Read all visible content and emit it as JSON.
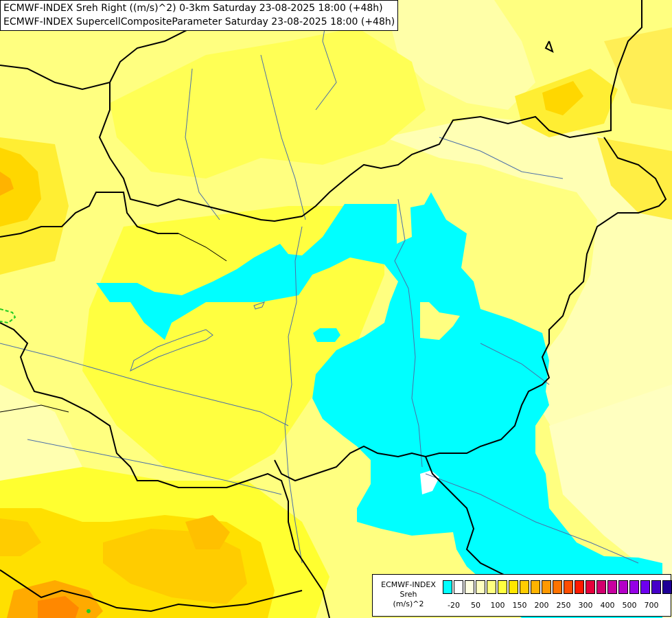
{
  "title_lines": [
    "ECMWF-INDEX Sreh Right ((m/s)^2) 0-3km Saturday 23-08-2025 18:00 (+48h)",
    "ECMWF-INDEX SupercellCompositeParameter Saturday 23-08-2025 18:00 (+48h)"
  ],
  "legend": {
    "line1": "ECMWF-INDEX",
    "line2": "Sreh",
    "line3": "(m/s)^2",
    "colors": [
      "#00ffff",
      "#ffffff",
      "#ffffe0",
      "#ffffc0",
      "#ffff80",
      "#ffff40",
      "#ffe600",
      "#ffcc00",
      "#ffb300",
      "#ff9900",
      "#ff7300",
      "#ff4d00",
      "#ff1a00",
      "#e6003c",
      "#d2006e",
      "#c800a0",
      "#b400c8",
      "#9600e6",
      "#6e00f0",
      "#4600c8",
      "#1e0096",
      "#00006e"
    ],
    "ticks": [
      "-20",
      "50",
      "100",
      "150",
      "200",
      "250",
      "300",
      "400",
      "500",
      "700"
    ]
  },
  "map": {
    "background_color": "#ffff80",
    "low_shear_color": "#00ffff",
    "moderate_color": "#ffd700",
    "high_color": "#ff9900",
    "border_color": "#000000",
    "river_color": "#4b6fa8"
  }
}
